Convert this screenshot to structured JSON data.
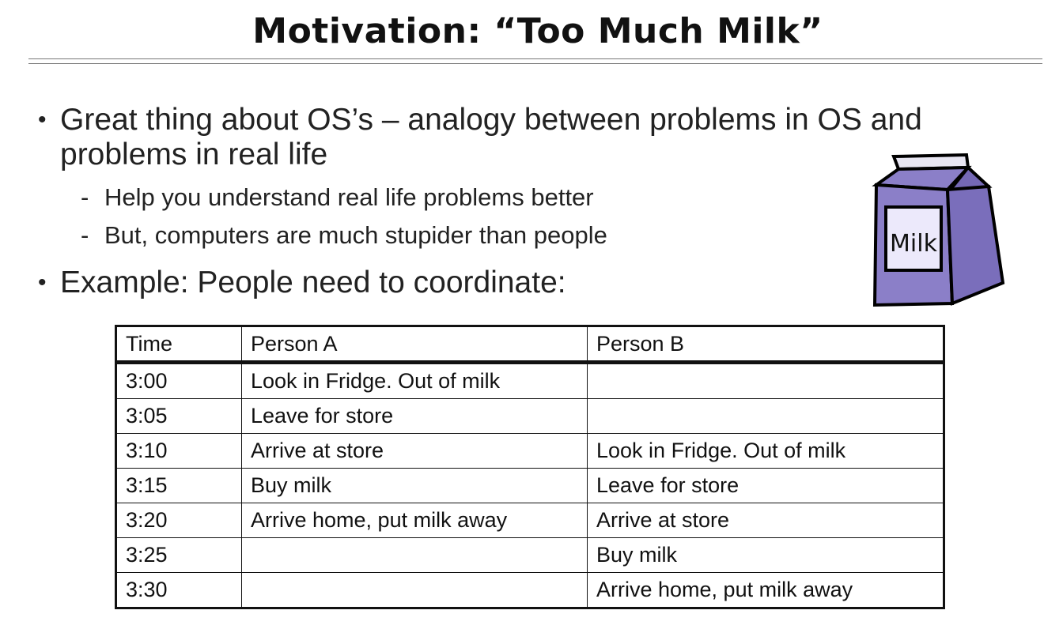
{
  "title": "Motivation: “Too Much Milk”",
  "bullets": [
    {
      "text_line1": "Great thing about OS’s – analogy between problems in OS and",
      "text_line2": "problems in real life",
      "subs": [
        "Help you understand real life problems better",
        "But, computers are much stupider than people"
      ]
    },
    {
      "text_line1": "Example: People need to coordinate:"
    }
  ],
  "milk_carton": {
    "label": "Milk",
    "color": "#8b7fc8"
  },
  "table": {
    "headers": [
      "Time",
      "Person A",
      "Person B"
    ],
    "rows": [
      [
        "3:00",
        "Look in Fridge. Out of milk",
        ""
      ],
      [
        "3:05",
        "Leave for store",
        ""
      ],
      [
        "3:10",
        "Arrive at store",
        "Look in Fridge. Out of milk"
      ],
      [
        "3:15",
        "Buy milk",
        "Leave for store"
      ],
      [
        "3:20",
        "Arrive home, put milk away",
        "Arrive at store"
      ],
      [
        "3:25",
        "",
        "Buy milk"
      ],
      [
        "3:30",
        "",
        "Arrive home, put milk away"
      ]
    ]
  }
}
